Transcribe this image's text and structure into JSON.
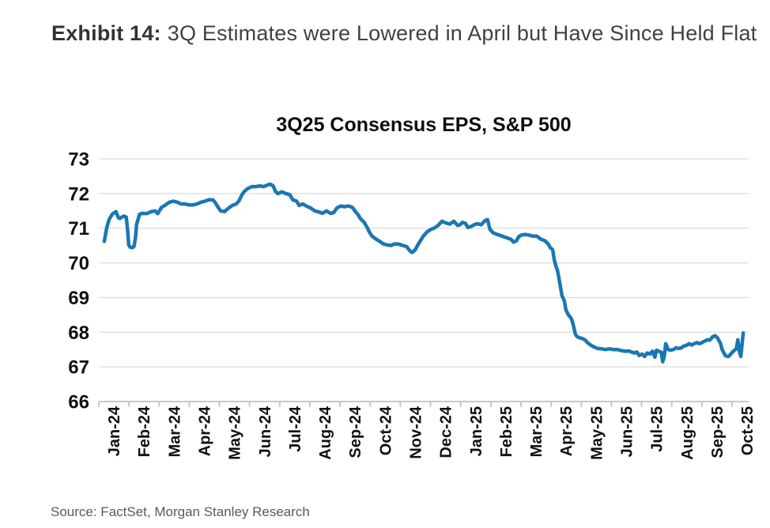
{
  "exhibit": {
    "label": "Exhibit 14:",
    "title": "3Q Estimates were Lowered in April but Have Since Held Flat"
  },
  "source": "Source: FactSet, Morgan Stanley Research",
  "chart_data": {
    "type": "line",
    "title": "3Q25 Consensus EPS, S&P 500",
    "xlabel": "",
    "ylabel": "",
    "ylim": [
      66,
      73
    ],
    "y_ticks": [
      66,
      67,
      68,
      69,
      70,
      71,
      72,
      73
    ],
    "x_tick_labels": [
      "Jan-24",
      "Feb-24",
      "Mar-24",
      "Apr-24",
      "May-24",
      "Jun-24",
      "Jul-24",
      "Aug-24",
      "Sep-24",
      "Oct-24",
      "Nov-24",
      "Dec-24",
      "Jan-25",
      "Feb-25",
      "Mar-25",
      "Apr-25",
      "May-25",
      "Jun-25",
      "Jul-25",
      "Aug-25",
      "Sep-25",
      "Oct-25"
    ],
    "x_axis_type": "time, months since Jan-2024 (fractional)",
    "x_max": 21.55,
    "grid": "horizontal",
    "legend": "none",
    "colors": {
      "line": "#1b77b1",
      "grid": "#dcdcdc",
      "axis": "#c9c9c9",
      "tick_text": "#111111"
    },
    "series": [
      {
        "name": "3Q25 Consensus EPS, S&P 500",
        "points": [
          [
            0.18,
            70.62
          ],
          [
            0.26,
            71.0
          ],
          [
            0.34,
            71.25
          ],
          [
            0.44,
            71.4
          ],
          [
            0.52,
            71.45
          ],
          [
            0.57,
            71.48
          ],
          [
            0.65,
            71.3
          ],
          [
            0.7,
            71.28
          ],
          [
            0.78,
            71.33
          ],
          [
            0.83,
            71.35
          ],
          [
            0.91,
            71.32
          ],
          [
            0.96,
            70.9
          ],
          [
            0.99,
            70.52
          ],
          [
            1.04,
            70.45
          ],
          [
            1.12,
            70.44
          ],
          [
            1.17,
            70.48
          ],
          [
            1.22,
            70.75
          ],
          [
            1.25,
            71.1
          ],
          [
            1.35,
            71.4
          ],
          [
            1.43,
            71.43
          ],
          [
            1.54,
            71.42
          ],
          [
            1.61,
            71.43
          ],
          [
            1.74,
            71.48
          ],
          [
            1.87,
            71.5
          ],
          [
            1.95,
            71.42
          ],
          [
            2.08,
            71.6
          ],
          [
            2.21,
            71.67
          ],
          [
            2.34,
            71.75
          ],
          [
            2.47,
            71.78
          ],
          [
            2.6,
            71.75
          ],
          [
            2.73,
            71.7
          ],
          [
            2.86,
            71.7
          ],
          [
            2.99,
            71.67
          ],
          [
            3.12,
            71.67
          ],
          [
            3.26,
            71.7
          ],
          [
            3.39,
            71.75
          ],
          [
            3.52,
            71.78
          ],
          [
            3.65,
            71.82
          ],
          [
            3.78,
            71.82
          ],
          [
            3.85,
            71.75
          ],
          [
            3.96,
            71.6
          ],
          [
            4.04,
            71.5
          ],
          [
            4.17,
            71.48
          ],
          [
            4.3,
            71.58
          ],
          [
            4.43,
            71.66
          ],
          [
            4.56,
            71.7
          ],
          [
            4.64,
            71.78
          ],
          [
            4.74,
            71.95
          ],
          [
            4.82,
            72.06
          ],
          [
            4.95,
            72.15
          ],
          [
            5.08,
            72.2
          ],
          [
            5.21,
            72.2
          ],
          [
            5.34,
            72.22
          ],
          [
            5.47,
            72.2
          ],
          [
            5.6,
            72.25
          ],
          [
            5.68,
            72.27
          ],
          [
            5.78,
            72.22
          ],
          [
            5.86,
            72.06
          ],
          [
            5.94,
            72.0
          ],
          [
            6.07,
            72.05
          ],
          [
            6.2,
            72.0
          ],
          [
            6.33,
            71.97
          ],
          [
            6.43,
            71.82
          ],
          [
            6.56,
            71.78
          ],
          [
            6.64,
            71.66
          ],
          [
            6.77,
            71.7
          ],
          [
            6.9,
            71.63
          ],
          [
            7.03,
            71.58
          ],
          [
            7.16,
            71.5
          ],
          [
            7.29,
            71.47
          ],
          [
            7.42,
            71.43
          ],
          [
            7.55,
            71.5
          ],
          [
            7.68,
            71.43
          ],
          [
            7.79,
            71.45
          ],
          [
            7.89,
            71.58
          ],
          [
            8.02,
            71.64
          ],
          [
            8.15,
            71.62
          ],
          [
            8.28,
            71.64
          ],
          [
            8.41,
            71.6
          ],
          [
            8.51,
            71.48
          ],
          [
            8.59,
            71.4
          ],
          [
            8.67,
            71.28
          ],
          [
            8.8,
            71.17
          ],
          [
            8.91,
            71.0
          ],
          [
            8.98,
            70.88
          ],
          [
            9.06,
            70.77
          ],
          [
            9.17,
            70.7
          ],
          [
            9.3,
            70.63
          ],
          [
            9.43,
            70.55
          ],
          [
            9.56,
            70.52
          ],
          [
            9.69,
            70.5
          ],
          [
            9.82,
            70.55
          ],
          [
            9.95,
            70.54
          ],
          [
            10.08,
            70.5
          ],
          [
            10.21,
            70.47
          ],
          [
            10.31,
            70.35
          ],
          [
            10.39,
            70.3
          ],
          [
            10.49,
            70.37
          ],
          [
            10.6,
            70.55
          ],
          [
            10.68,
            70.66
          ],
          [
            10.76,
            70.77
          ],
          [
            10.89,
            70.9
          ],
          [
            11.02,
            70.97
          ],
          [
            11.12,
            71.0
          ],
          [
            11.25,
            71.08
          ],
          [
            11.38,
            71.2
          ],
          [
            11.51,
            71.15
          ],
          [
            11.64,
            71.12
          ],
          [
            11.77,
            71.2
          ],
          [
            11.9,
            71.08
          ],
          [
            11.98,
            71.1
          ],
          [
            12.06,
            71.17
          ],
          [
            12.16,
            71.14
          ],
          [
            12.24,
            71.02
          ],
          [
            12.37,
            71.06
          ],
          [
            12.45,
            71.1
          ],
          [
            12.55,
            71.13
          ],
          [
            12.68,
            71.1
          ],
          [
            12.81,
            71.22
          ],
          [
            12.89,
            71.25
          ],
          [
            12.97,
            70.97
          ],
          [
            13.07,
            70.87
          ],
          [
            13.15,
            70.84
          ],
          [
            13.28,
            70.8
          ],
          [
            13.41,
            70.76
          ],
          [
            13.54,
            70.72
          ],
          [
            13.67,
            70.68
          ],
          [
            13.75,
            70.6
          ],
          [
            13.85,
            70.64
          ],
          [
            13.93,
            70.76
          ],
          [
            14.01,
            70.8
          ],
          [
            14.14,
            70.82
          ],
          [
            14.27,
            70.8
          ],
          [
            14.4,
            70.77
          ],
          [
            14.53,
            70.77
          ],
          [
            14.66,
            70.68
          ],
          [
            14.79,
            70.64
          ],
          [
            14.9,
            70.55
          ],
          [
            14.97,
            70.44
          ],
          [
            15.05,
            70.38
          ],
          [
            15.1,
            70.1
          ],
          [
            15.16,
            69.9
          ],
          [
            15.21,
            69.78
          ],
          [
            15.26,
            69.55
          ],
          [
            15.31,
            69.3
          ],
          [
            15.36,
            69.05
          ],
          [
            15.44,
            68.9
          ],
          [
            15.49,
            68.65
          ],
          [
            15.57,
            68.5
          ],
          [
            15.65,
            68.42
          ],
          [
            15.7,
            68.32
          ],
          [
            15.75,
            68.15
          ],
          [
            15.8,
            67.95
          ],
          [
            15.85,
            67.88
          ],
          [
            15.91,
            67.85
          ],
          [
            16.02,
            67.82
          ],
          [
            16.12,
            67.78
          ],
          [
            16.23,
            67.68
          ],
          [
            16.33,
            67.62
          ],
          [
            16.43,
            67.57
          ],
          [
            16.54,
            67.53
          ],
          [
            16.67,
            67.52
          ],
          [
            16.8,
            67.5
          ],
          [
            16.93,
            67.52
          ],
          [
            17.06,
            67.5
          ],
          [
            17.19,
            67.5
          ],
          [
            17.32,
            67.47
          ],
          [
            17.45,
            67.45
          ],
          [
            17.58,
            67.46
          ],
          [
            17.66,
            67.43
          ],
          [
            17.76,
            67.4
          ],
          [
            17.84,
            67.43
          ],
          [
            17.92,
            67.33
          ],
          [
            18.02,
            67.37
          ],
          [
            18.1,
            67.3
          ],
          [
            18.18,
            67.4
          ],
          [
            18.28,
            67.37
          ],
          [
            18.36,
            67.45
          ],
          [
            18.44,
            67.28
          ],
          [
            18.49,
            67.48
          ],
          [
            18.57,
            67.45
          ],
          [
            18.65,
            67.42
          ],
          [
            18.7,
            67.15
          ],
          [
            18.75,
            67.3
          ],
          [
            18.8,
            67.67
          ],
          [
            18.88,
            67.5
          ],
          [
            18.96,
            67.48
          ],
          [
            19.06,
            67.5
          ],
          [
            19.14,
            67.55
          ],
          [
            19.22,
            67.53
          ],
          [
            19.32,
            67.55
          ],
          [
            19.4,
            67.6
          ],
          [
            19.48,
            67.62
          ],
          [
            19.58,
            67.67
          ],
          [
            19.66,
            67.63
          ],
          [
            19.74,
            67.67
          ],
          [
            19.84,
            67.7
          ],
          [
            19.92,
            67.67
          ],
          [
            20.0,
            67.7
          ],
          [
            20.1,
            67.75
          ],
          [
            20.18,
            67.78
          ],
          [
            20.26,
            67.77
          ],
          [
            20.36,
            67.87
          ],
          [
            20.44,
            67.9
          ],
          [
            20.52,
            67.83
          ],
          [
            20.62,
            67.67
          ],
          [
            20.67,
            67.5
          ],
          [
            20.78,
            67.32
          ],
          [
            20.88,
            67.3
          ],
          [
            20.96,
            67.37
          ],
          [
            21.04,
            67.45
          ],
          [
            21.14,
            67.52
          ],
          [
            21.19,
            67.78
          ],
          [
            21.24,
            67.45
          ],
          [
            21.29,
            67.3
          ],
          [
            21.37,
            67.98
          ]
        ]
      }
    ]
  }
}
